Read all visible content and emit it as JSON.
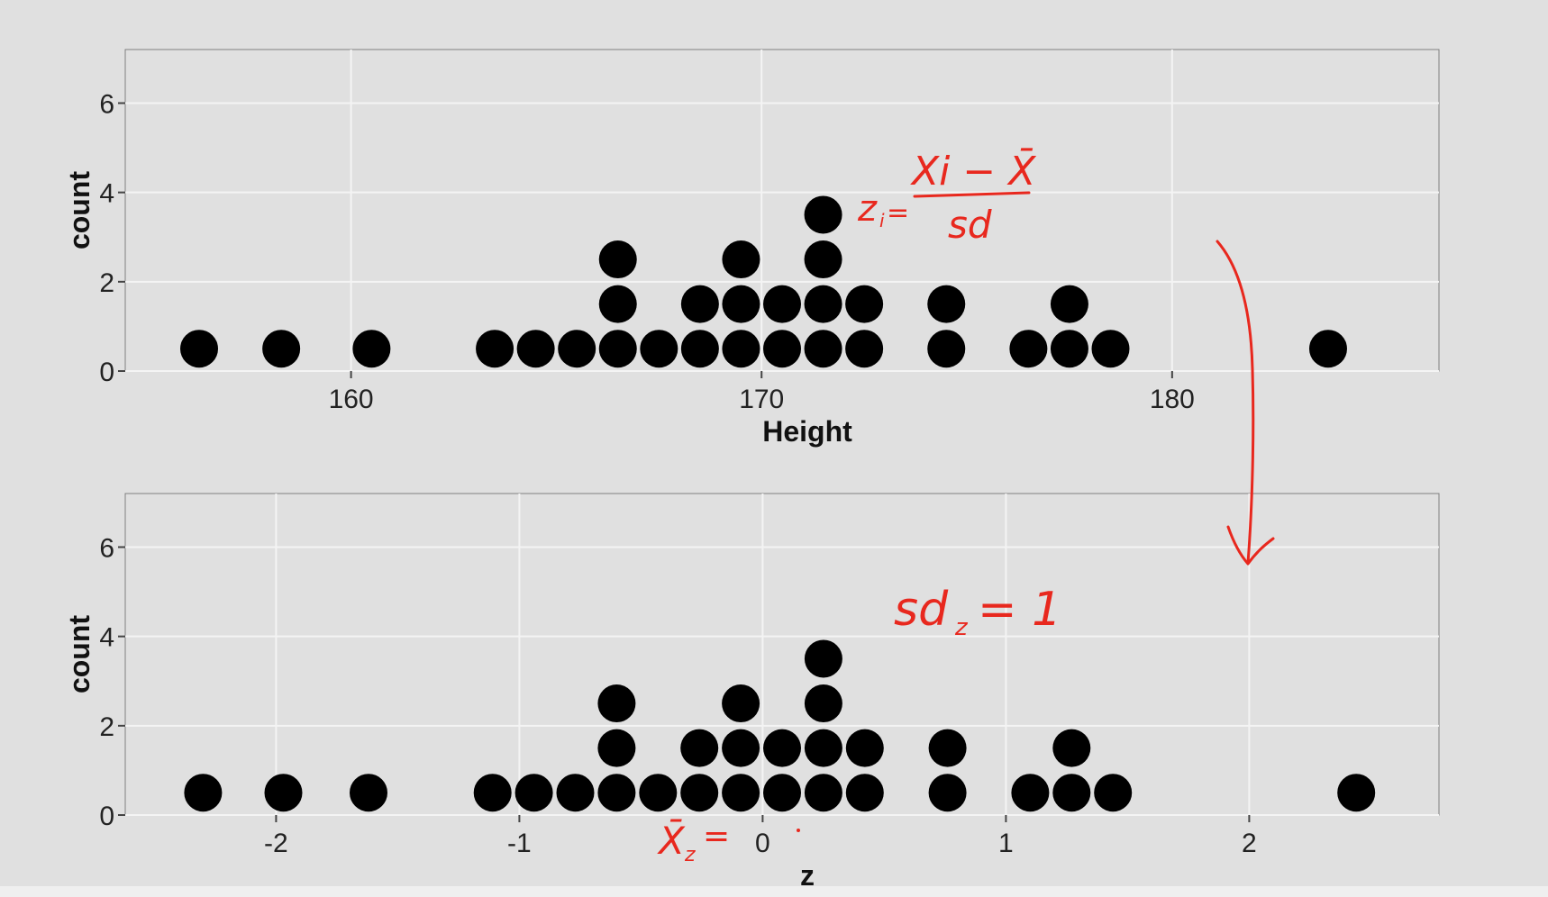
{
  "chart_data": [
    {
      "type": "dotplot",
      "xlabel": "Height",
      "ylabel": "count",
      "xlim": [
        154.5,
        186.5
      ],
      "ylim": [
        0,
        7.2
      ],
      "x_ticks": [
        160,
        170,
        180
      ],
      "x_tick_labels": [
        "160",
        "170",
        "180"
      ],
      "y_ticks": [
        0,
        2,
        4,
        6
      ],
      "y_tick_labels": [
        "0",
        "2",
        "4",
        "6"
      ],
      "stacks": [
        {
          "x": 156.3,
          "count": 1
        },
        {
          "x": 158.3,
          "count": 1
        },
        {
          "x": 160.5,
          "count": 1
        },
        {
          "x": 163.5,
          "count": 1
        },
        {
          "x": 164.5,
          "count": 1
        },
        {
          "x": 165.5,
          "count": 1
        },
        {
          "x": 166.5,
          "count": 3
        },
        {
          "x": 167.5,
          "count": 1
        },
        {
          "x": 168.5,
          "count": 2
        },
        {
          "x": 169.5,
          "count": 3
        },
        {
          "x": 170.5,
          "count": 2
        },
        {
          "x": 171.5,
          "count": 4
        },
        {
          "x": 172.5,
          "count": 2
        },
        {
          "x": 174.5,
          "count": 2
        },
        {
          "x": 176.5,
          "count": 1
        },
        {
          "x": 177.5,
          "count": 2
        },
        {
          "x": 178.5,
          "count": 1
        },
        {
          "x": 183.8,
          "count": 1
        }
      ],
      "grid": true,
      "background": "#e0e0e0",
      "dot_color": "#000000"
    },
    {
      "type": "dotplot",
      "xlabel": "z",
      "ylabel": "count",
      "xlim": [
        -2.62,
        2.78
      ],
      "ylim": [
        0,
        7.2
      ],
      "x_ticks": [
        -2,
        -1,
        0,
        1,
        2
      ],
      "x_tick_labels": [
        "-2",
        "-1",
        "0",
        "1",
        "2"
      ],
      "y_ticks": [
        0,
        2,
        4,
        6
      ],
      "y_tick_labels": [
        "0",
        "2",
        "4",
        "6"
      ],
      "stacks": [
        {
          "x": -2.3,
          "count": 1
        },
        {
          "x": -1.97,
          "count": 1
        },
        {
          "x": -1.62,
          "count": 1
        },
        {
          "x": -1.11,
          "count": 1
        },
        {
          "x": -0.94,
          "count": 1
        },
        {
          "x": -0.77,
          "count": 1
        },
        {
          "x": -0.6,
          "count": 3
        },
        {
          "x": -0.43,
          "count": 1
        },
        {
          "x": -0.26,
          "count": 2
        },
        {
          "x": -0.09,
          "count": 3
        },
        {
          "x": 0.08,
          "count": 2
        },
        {
          "x": 0.25,
          "count": 4
        },
        {
          "x": 0.42,
          "count": 2
        },
        {
          "x": 0.76,
          "count": 2
        },
        {
          "x": 1.1,
          "count": 1
        },
        {
          "x": 1.27,
          "count": 2
        },
        {
          "x": 1.44,
          "count": 1
        },
        {
          "x": 2.44,
          "count": 1
        }
      ],
      "grid": true,
      "background": "#e0e0e0",
      "dot_color": "#000000"
    }
  ],
  "annotations": {
    "formula_lhs": "z",
    "formula_subscript": "i",
    "formula_eq": "=",
    "formula_numerator": "Xi − X̄",
    "formula_denominator": "sd",
    "sd_note": "sd",
    "sd_note_subscript": "z",
    "sd_note_value": "= 1",
    "mean_note": "X̄",
    "mean_note_subscript": "z",
    "mean_note_eq": "=",
    "ink_color": "#e8281e"
  }
}
